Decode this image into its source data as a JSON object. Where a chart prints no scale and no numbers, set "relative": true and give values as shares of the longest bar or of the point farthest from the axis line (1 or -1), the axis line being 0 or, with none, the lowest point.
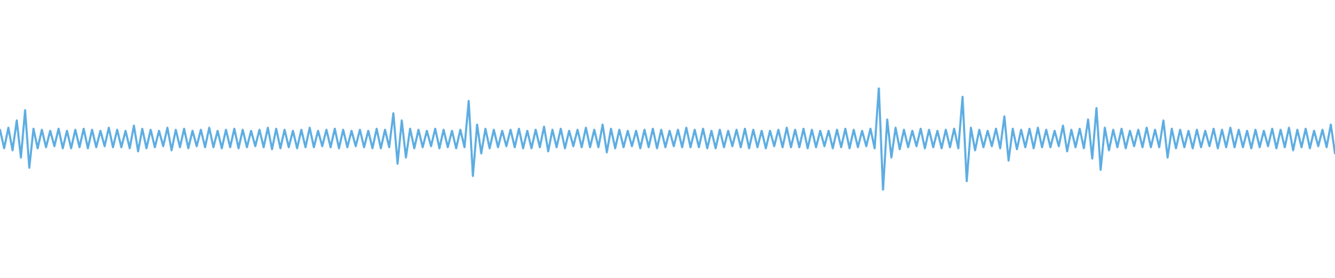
{
  "chart_data": {
    "type": "line",
    "relative": true,
    "color": "#5dade2",
    "categories": [
      null,
      null,
      null,
      null,
      null,
      null,
      null,
      null,
      null,
      null,
      null,
      null,
      null,
      null,
      null,
      null,
      null,
      null,
      null,
      null,
      null,
      null,
      null,
      null,
      null,
      null,
      null,
      null,
      null,
      null,
      null,
      null,
      null,
      null,
      null,
      null,
      null,
      null,
      null,
      null,
      null,
      null,
      null,
      null,
      null,
      null,
      null,
      null,
      null,
      null,
      null,
      null,
      null,
      null,
      null,
      null,
      null,
      null,
      null,
      null,
      null,
      null,
      null,
      null,
      null,
      null,
      null,
      null,
      null,
      null,
      null,
      null,
      null,
      null,
      null,
      null,
      null,
      null,
      null,
      null,
      null,
      null,
      null,
      null,
      null,
      null,
      null,
      null,
      null,
      null,
      null,
      null,
      null,
      null,
      null,
      null,
      null,
      null,
      null,
      null,
      null,
      null,
      null,
      null,
      null,
      null,
      null,
      null,
      null,
      null,
      null,
      null,
      null,
      null,
      null,
      null,
      null,
      null,
      null,
      null,
      null,
      null,
      null,
      null,
      null,
      null,
      null,
      null,
      null,
      null,
      null,
      null,
      null,
      null,
      null,
      null,
      null,
      null,
      null,
      null,
      null,
      null,
      null,
      null,
      null,
      null,
      null,
      null,
      null,
      null,
      null,
      null,
      null,
      null,
      null,
      null,
      null,
      null,
      null,
      null,
      null,
      null,
      null,
      null,
      null,
      null,
      null,
      null,
      null,
      null,
      null,
      null,
      null,
      null,
      null,
      null,
      null,
      null,
      null,
      null,
      null,
      null,
      null,
      null,
      null,
      null,
      null,
      null,
      null,
      null,
      null,
      null,
      null,
      null,
      null,
      null,
      null,
      null,
      null,
      null,
      null,
      null,
      null,
      null,
      null,
      null,
      null,
      null,
      null,
      null,
      null,
      null,
      null,
      null,
      null,
      null,
      null,
      null,
      null,
      null,
      null,
      null,
      null,
      null,
      null,
      null,
      null,
      null,
      null,
      null,
      null,
      null,
      null,
      null,
      null,
      null,
      null,
      null,
      null,
      null,
      null,
      null,
      null,
      null,
      null,
      null,
      null,
      null,
      null,
      null,
      null,
      null,
      null,
      null,
      null,
      null,
      null,
      null,
      null,
      null,
      null,
      null,
      null,
      null,
      null,
      null,
      null,
      null,
      null,
      null,
      null,
      null,
      null,
      null,
      null,
      null,
      null,
      null,
      null,
      null,
      null,
      null,
      null,
      null,
      null,
      null,
      null,
      null,
      null,
      null,
      null,
      null,
      null,
      null,
      null,
      null,
      null,
      null,
      null,
      null,
      null,
      null,
      null,
      null,
      null,
      null,
      null,
      null,
      null,
      null,
      null,
      null,
      null,
      null,
      null,
      null,
      null,
      null,
      null,
      null
    ],
    "values": [
      0.59,
      0.41,
      0.61,
      0.39,
      0.68,
      0.32,
      0.78,
      0.22,
      0.6,
      0.41,
      0.59,
      0.42,
      0.58,
      0.43,
      0.6,
      0.41,
      0.58,
      0.41,
      0.59,
      0.42,
      0.6,
      0.41,
      0.59,
      0.42,
      0.58,
      0.43,
      0.61,
      0.42,
      0.59,
      0.42,
      0.58,
      0.41,
      0.63,
      0.38,
      0.6,
      0.41,
      0.59,
      0.42,
      0.58,
      0.43,
      0.61,
      0.39,
      0.59,
      0.42,
      0.6,
      0.41,
      0.58,
      0.43,
      0.59,
      0.42,
      0.61,
      0.42,
      0.58,
      0.41,
      0.59,
      0.42,
      0.6,
      0.41,
      0.59,
      0.42,
      0.58,
      0.43,
      0.59,
      0.42,
      0.61,
      0.4,
      0.6,
      0.41,
      0.59,
      0.42,
      0.58,
      0.41,
      0.59,
      0.42,
      0.61,
      0.42,
      0.58,
      0.43,
      0.59,
      0.42,
      0.6,
      0.41,
      0.59,
      0.42,
      0.58,
      0.43,
      0.59,
      0.42,
      0.58,
      0.41,
      0.6,
      0.41,
      0.59,
      0.42,
      0.75,
      0.26,
      0.68,
      0.32,
      0.6,
      0.41,
      0.59,
      0.42,
      0.58,
      0.43,
      0.6,
      0.41,
      0.59,
      0.42,
      0.58,
      0.41,
      0.59,
      0.42,
      0.87,
      0.14,
      0.64,
      0.36,
      0.6,
      0.41,
      0.59,
      0.42,
      0.58,
      0.43,
      0.59,
      0.42,
      0.6,
      0.41,
      0.58,
      0.41,
      0.59,
      0.42,
      0.62,
      0.38,
      0.59,
      0.42,
      0.6,
      0.41,
      0.58,
      0.43,
      0.59,
      0.42,
      0.61,
      0.42,
      0.59,
      0.42,
      0.64,
      0.37,
      0.6,
      0.41,
      0.59,
      0.42,
      0.58,
      0.43,
      0.58,
      0.41,
      0.59,
      0.42,
      0.6,
      0.41,
      0.59,
      0.42,
      0.58,
      0.43,
      0.59,
      0.42,
      0.61,
      0.42,
      0.59,
      0.42,
      0.6,
      0.41,
      0.58,
      0.41,
      0.59,
      0.42,
      0.58,
      0.43,
      0.59,
      0.42,
      0.6,
      0.41,
      0.59,
      0.42,
      0.58,
      0.41,
      0.58,
      0.43,
      0.59,
      0.42,
      0.61,
      0.42,
      0.59,
      0.42,
      0.6,
      0.41,
      0.59,
      0.42,
      0.58,
      0.43,
      0.58,
      0.41,
      0.59,
      0.42,
      0.6,
      0.41,
      0.59,
      0.42,
      0.58,
      0.43,
      0.6,
      0.41,
      1.0,
      0.0,
      0.69,
      0.32,
      0.61,
      0.4,
      0.59,
      0.42,
      0.58,
      0.43,
      0.6,
      0.41,
      0.59,
      0.42,
      0.58,
      0.41,
      0.59,
      0.42,
      0.6,
      0.41,
      0.91,
      0.09,
      0.61,
      0.39,
      0.59,
      0.42,
      0.58,
      0.43,
      0.6,
      0.41,
      0.72,
      0.29,
      0.6,
      0.4,
      0.59,
      0.42,
      0.6,
      0.41,
      0.61,
      0.42,
      0.59,
      0.42,
      0.58,
      0.43,
      0.63,
      0.38,
      0.59,
      0.42,
      0.6,
      0.41,
      0.69,
      0.31,
      0.8,
      0.2,
      0.61,
      0.39,
      0.59,
      0.42,
      0.6,
      0.41,
      0.58,
      0.43,
      0.59,
      0.42,
      0.61,
      0.42,
      0.59,
      0.42,
      0.68,
      0.32,
      0.6,
      0.41,
      0.59,
      0.42,
      0.58,
      0.41,
      0.59,
      0.42,
      0.58,
      0.43,
      0.6,
      0.41,
      0.59,
      0.42,
      0.61,
      0.42,
      0.59,
      0.42,
      0.58,
      0.41,
      0.59,
      0.42,
      0.58,
      0.43,
      0.6,
      0.41,
      0.59,
      0.42,
      0.61,
      0.39,
      0.59,
      0.42,
      0.6,
      0.41,
      0.58,
      0.43,
      0.59,
      0.42,
      0.64,
      0.36
    ]
  }
}
